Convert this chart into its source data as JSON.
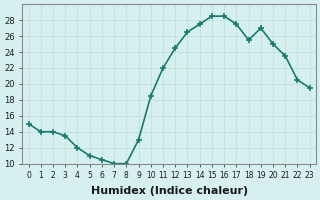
{
  "x": [
    0,
    1,
    2,
    3,
    4,
    5,
    6,
    7,
    8,
    9,
    10,
    11,
    12,
    13,
    14,
    15,
    16,
    17,
    18,
    19,
    20,
    21,
    22,
    23
  ],
  "y": [
    15,
    14,
    14,
    13.5,
    12,
    11,
    10.5,
    10,
    10,
    13,
    18.5,
    22,
    24.5,
    26.5,
    27.5,
    28.5,
    28.5,
    27.5,
    25.5,
    27,
    25,
    23.5,
    20.5,
    19.5
  ],
  "line_color": "#1a7a6e",
  "marker_color": "#1a7a6e",
  "bg_color": "#d6f0f0",
  "grid_color": "#c0dede",
  "xlabel": "Humidex (Indice chaleur)",
  "ylim": [
    10,
    30
  ],
  "xlim": [
    -0.5,
    23.5
  ],
  "yticks": [
    10,
    12,
    14,
    16,
    18,
    20,
    22,
    24,
    26,
    28
  ],
  "xticks": [
    0,
    1,
    2,
    3,
    4,
    5,
    6,
    7,
    8,
    9,
    10,
    11,
    12,
    13,
    14,
    15,
    16,
    17,
    18,
    19,
    20,
    21,
    22,
    23
  ],
  "font_color": "#1a1a1a",
  "label_fontsize": 8
}
